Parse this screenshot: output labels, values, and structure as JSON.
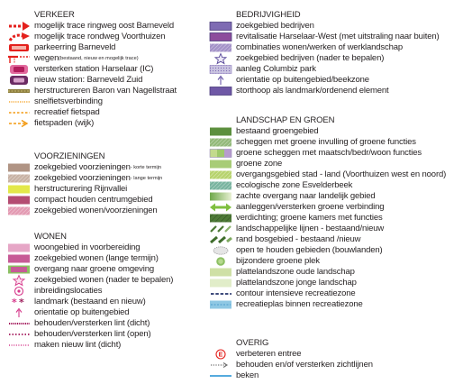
{
  "left_column": {
    "sections": [
      {
        "key": "verkeer",
        "heading": "VERKEER",
        "items": [
          {
            "label": "mogelijk trace ringweg oost Barneveld",
            "symbol": "dashed-arrow-red"
          },
          {
            "label": "mogelijk trace rondweg Voorthuizen",
            "symbol": "dashed-arrow-red-curved"
          },
          {
            "label": "parkeerring Barneveld",
            "symbol": "parking-ring-red"
          },
          {
            "label": "wegen",
            "note": " (bestaand, nieuw en mogelijk trace)",
            "symbol": "roads-red"
          },
          {
            "label": "versterken station Harselaar (IC)",
            "symbol": "station-ic"
          },
          {
            "label": "nieuw station: Barneveld Zuid",
            "symbol": "station-new"
          },
          {
            "label": "herstructureren Baron van Nagellstraat",
            "symbol": "street-olive"
          },
          {
            "label": "snelfietsverbinding",
            "symbol": "dotted-orange-fine"
          },
          {
            "label": "recreatief fietspad",
            "symbol": "dotted-orange-coarse"
          },
          {
            "label": "fietspaden (wijk)",
            "symbol": "dashed-arrow-orange"
          }
        ]
      },
      {
        "key": "voorzieningen",
        "heading": "VOORZIENINGEN",
        "items": [
          {
            "label": "zoekgebied voorzieningen",
            "note": " - korte termijn",
            "symbol": "swatch",
            "color": "#b09484"
          },
          {
            "label": "zoekgebied voorzieningen",
            "note": " - lange termijn",
            "symbol": "swatch-hatched",
            "color": "#c8b2a4"
          },
          {
            "label": "herstructurering Rijnvallei",
            "symbol": "swatch",
            "color": "#e3e84a"
          },
          {
            "label": "compact houden centrumgebied",
            "symbol": "swatch",
            "color": "#b44c72"
          },
          {
            "label": "zoekgebied wonen/voorzieningen",
            "symbol": "swatch-hatched",
            "color": "#e39ab2"
          }
        ]
      },
      {
        "key": "wonen",
        "heading": "WONEN",
        "items": [
          {
            "label": "woongebied in voorbereiding",
            "symbol": "swatch",
            "color": "#e6a6c6"
          },
          {
            "label": "zoekgebied wonen (lange termijn)",
            "symbol": "swatch",
            "color": "#c75a96"
          },
          {
            "label": "overgang naar groene omgeving",
            "symbol": "swatch-green-edge",
            "color": "#c75a96"
          },
          {
            "label": "zoekgebied wonen (nader te bepalen)",
            "symbol": "star-outline-pink"
          },
          {
            "label": "inbreidingslocaties",
            "symbol": "circle-outline-pink"
          },
          {
            "label": "landmark (bestaand en nieuw)",
            "symbol": "asterisks-pink"
          },
          {
            "label": "orientatie op buitengebied",
            "symbol": "arrow-up-pink"
          },
          {
            "label": "behouden/versterken lint (dicht)",
            "symbol": "line-dense-pink"
          },
          {
            "label": "behouden/versterken lint (open)",
            "symbol": "line-open-pink"
          },
          {
            "label": "maken nieuw lint (dicht)",
            "symbol": "line-dotted-pink"
          }
        ]
      }
    ]
  },
  "right_column": {
    "sections": [
      {
        "key": "bedrijvigheid",
        "heading": "BEDRIJVIGHEID",
        "items": [
          {
            "label": "zoekgebied bedrijven",
            "symbol": "swatch-bordered",
            "color": "#7e6bb3"
          },
          {
            "label": "revitalisatie Harselaar-West (met uitstraling naar buiten)",
            "symbol": "swatch-bordered",
            "color": "#8d4d9c"
          },
          {
            "label": "combinaties wonen/werken of werklandschap",
            "symbol": "swatch-hatched",
            "color": "#a493c8"
          },
          {
            "label": "zoekgebied bedrijven (nader te bepalen)",
            "symbol": "star-outline-purple"
          },
          {
            "label": "aanleg Columbiz park",
            "symbol": "swatch-dotted",
            "color": "#c9c3e0"
          },
          {
            "label": "orientatie op buitengebied/beekzone",
            "symbol": "arrow-up-purple"
          },
          {
            "label": "storthoop als landmark/ordenend element",
            "symbol": "swatch-bordered",
            "color": "#6f58a6"
          }
        ]
      },
      {
        "key": "landschap",
        "heading": "LANDSCHAP EN GROEN",
        "items": [
          {
            "label": "bestaand groengebied",
            "symbol": "swatch",
            "color": "#5c8f3e"
          },
          {
            "label": "scheggen met groene invulling of groene functies",
            "symbol": "swatch-hatched",
            "color": "#93b97a"
          },
          {
            "label": "groene scheggen met maatsch/bedr/woon functies",
            "symbol": "swatch-mixed"
          },
          {
            "label": "groene zone",
            "symbol": "swatch",
            "color": "#a8cc77"
          },
          {
            "label": "overgangsgebied stad - land (Voorthuizen west en noord)",
            "symbol": "swatch-hatched",
            "color": "#b7d36d"
          },
          {
            "label": "ecologische zone Esvelderbeek",
            "symbol": "swatch-hatched",
            "color": "#79b4a0"
          },
          {
            "label": "zachte overgang naar landelijk gebied",
            "symbol": "gradient-green"
          },
          {
            "label": "aanleggen/versterken groene verbinding",
            "symbol": "double-arrow-green"
          },
          {
            "label": "verdichting; groene kamers met functies",
            "symbol": "swatch-hatched-dark",
            "color": "#4d7a36"
          },
          {
            "label": "landschappelijke lijnen - bestaand/nieuw",
            "symbol": "dashes-green"
          },
          {
            "label": "rand bosgebied - bestaand /nieuw",
            "symbol": "dashes-green-bold"
          },
          {
            "label": "open te houden gebieden (bouwlanden)",
            "symbol": "ellipse-grey"
          },
          {
            "label": "bijzondere groene plek",
            "symbol": "circle-green"
          },
          {
            "label": "plattelandszone oude landschap",
            "symbol": "swatch",
            "color": "#cfe0a6"
          },
          {
            "label": "plattelandszone jonge landschap",
            "symbol": "swatch",
            "color": "#e1edc9"
          },
          {
            "label": "contour intensieve recreatiezone",
            "symbol": "dashed-navy"
          },
          {
            "label": "recreatieplas binnen recreatiezone",
            "symbol": "swatch-water",
            "color": "#8fc8e4"
          }
        ]
      },
      {
        "key": "overig",
        "heading": "OVERIG",
        "items": [
          {
            "label": "verbeteren entree",
            "symbol": "entree-e"
          },
          {
            "label": "behouden en/of versterken zichtlijnen",
            "symbol": "dotted-arrow-grey"
          },
          {
            "label": "beken",
            "symbol": "line-blue"
          }
        ]
      }
    ]
  },
  "colors": {
    "red": "#e4201c",
    "orange": "#f39a11",
    "pink": "#d6398b",
    "purple": "#7e6bb3",
    "green": "#5c8f3e",
    "blue": "#1e8fd3"
  }
}
